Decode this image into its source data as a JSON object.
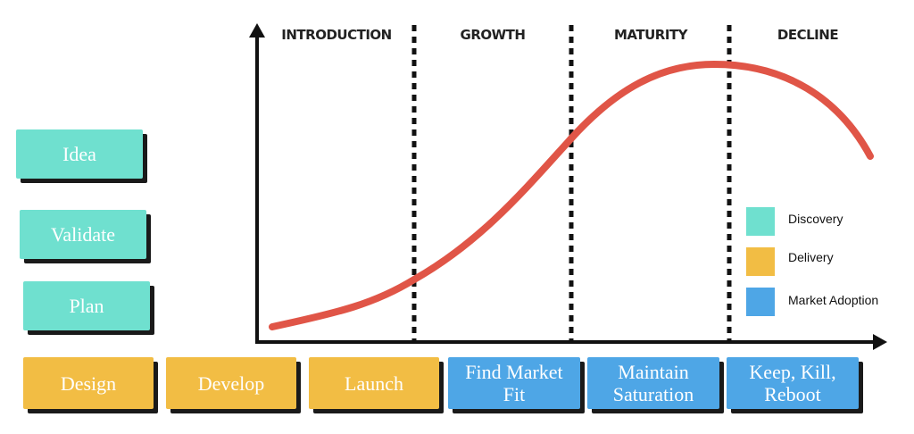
{
  "stages": [
    "INTRODUCTION",
    "GROWTH",
    "MATURITY",
    "DECLINE"
  ],
  "side_steps": [
    "Idea",
    "Validate",
    "Plan"
  ],
  "bottom_steps": [
    [
      "Design"
    ],
    [
      "Develop"
    ],
    [
      "Launch"
    ],
    [
      "Find Market",
      "Fit"
    ],
    [
      "Maintain",
      "Saturation"
    ],
    [
      "Keep, Kill,",
      "Reboot"
    ]
  ],
  "legend": [
    "Discovery",
    "Delivery",
    "Market Adoption"
  ]
}
